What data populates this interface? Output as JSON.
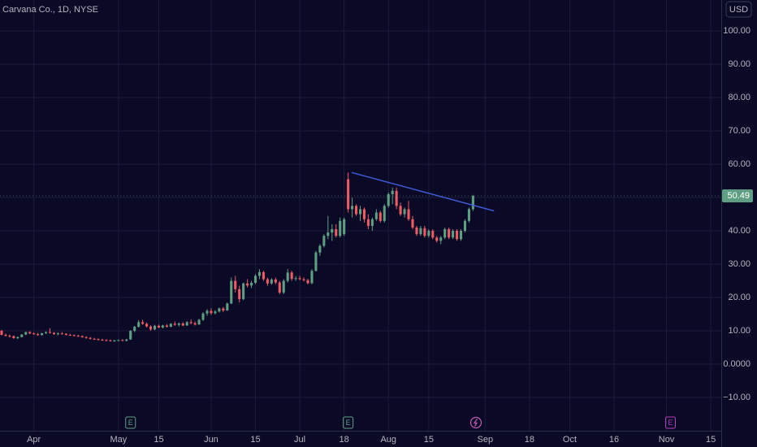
{
  "chart_data": {
    "type": "candlestick",
    "title": "Carvana Co., 1D, NYSE",
    "currency": "USD",
    "up_color": "#5e9f84",
    "down_color": "#f05a64",
    "grid": true,
    "ylim": [
      -20,
      109.3
    ],
    "xlim": [
      -0.4,
      178.6
    ],
    "yticks": [
      {
        "value": -10,
        "label": "−10.00"
      },
      {
        "value": 0,
        "label": "0.0000"
      },
      {
        "value": 10,
        "label": "10.00"
      },
      {
        "value": 20,
        "label": "20.00"
      },
      {
        "value": 30,
        "label": "30.00"
      },
      {
        "value": 40,
        "label": "40.00"
      },
      {
        "value": 50,
        "label": "50.00"
      },
      {
        "value": 60,
        "label": "60.00"
      },
      {
        "value": 70,
        "label": "70.00"
      },
      {
        "value": 80,
        "label": "80.00"
      },
      {
        "value": 90,
        "label": "90.00"
      },
      {
        "value": 100,
        "label": "100.00"
      }
    ],
    "xticks": [
      {
        "value": 8,
        "label": "Apr"
      },
      {
        "value": 29,
        "label": "May"
      },
      {
        "value": 39,
        "label": "15"
      },
      {
        "value": 52,
        "label": "Jun"
      },
      {
        "value": 63,
        "label": "15"
      },
      {
        "value": 74,
        "label": "Jul"
      },
      {
        "value": 85,
        "label": "18"
      },
      {
        "value": 96,
        "label": "Aug"
      },
      {
        "value": 106,
        "label": "15"
      },
      {
        "value": 120,
        "label": "Sep"
      },
      {
        "value": 131,
        "label": "18"
      },
      {
        "value": 141,
        "label": "Oct"
      },
      {
        "value": 152,
        "label": "16"
      },
      {
        "value": 165,
        "label": "Nov"
      },
      {
        "value": 176,
        "label": "15"
      }
    ],
    "last_price": 50.49,
    "last_price_color": "#5e9f84",
    "trendline": {
      "x": [
        86.9,
        122.2
      ],
      "y": [
        57.5,
        46.0
      ],
      "color": "#3f5ad8"
    },
    "events": [
      {
        "x": 32,
        "label": "E",
        "color": "#5e9f84"
      },
      {
        "x": 86,
        "label": "E",
        "color": "#5e9f84"
      },
      {
        "x": 166,
        "label": "E",
        "color": "#b43fbd"
      }
    ],
    "ohlc": [
      [
        10,
        10.3,
        8.6,
        8.8
      ],
      [
        8.8,
        9.2,
        8.3,
        8.5
      ],
      [
        8.5,
        8.9,
        8.0,
        8.4
      ],
      [
        8.4,
        8.6,
        7.6,
        7.8
      ],
      [
        7.8,
        8.3,
        7.5,
        8.1
      ],
      [
        8.1,
        9.0,
        8.0,
        8.9
      ],
      [
        8.9,
        9.8,
        8.7,
        9.6
      ],
      [
        9.6,
        9.9,
        9.0,
        9.2
      ],
      [
        9.2,
        9.5,
        8.8,
        9.0
      ],
      [
        9.0,
        9.4,
        8.5,
        8.7
      ],
      [
        8.7,
        9.4,
        8.6,
        9.3
      ],
      [
        9.3,
        9.8,
        9.0,
        9.6
      ],
      [
        9.6,
        10.8,
        9.2,
        9.4
      ],
      [
        9.4,
        9.6,
        8.8,
        9.0
      ],
      [
        9.0,
        9.5,
        8.7,
        9.2
      ],
      [
        9.2,
        9.6,
        8.9,
        9.1
      ],
      [
        9.1,
        9.3,
        8.6,
        8.8
      ],
      [
        8.8,
        9.1,
        8.5,
        8.7
      ],
      [
        8.7,
        8.9,
        8.3,
        8.5
      ],
      [
        8.5,
        8.8,
        8.2,
        8.4
      ],
      [
        8.4,
        8.6,
        7.9,
        8.1
      ],
      [
        8.1,
        8.4,
        7.6,
        7.9
      ],
      [
        7.9,
        8.1,
        7.4,
        7.6
      ],
      [
        7.6,
        7.9,
        7.3,
        7.5
      ],
      [
        7.5,
        7.7,
        7.1,
        7.3
      ],
      [
        7.3,
        7.6,
        7.0,
        7.2
      ],
      [
        7.2,
        7.5,
        6.9,
        7.1
      ],
      [
        7.1,
        7.4,
        6.8,
        7.0
      ],
      [
        7.0,
        7.3,
        6.7,
        7.1
      ],
      [
        7.1,
        7.4,
        6.9,
        7.2
      ],
      [
        7.2,
        7.5,
        6.9,
        7.0
      ],
      [
        7.0,
        7.6,
        6.8,
        7.4
      ],
      [
        7.4,
        10.2,
        7.3,
        10.0
      ],
      [
        10.0,
        11.5,
        9.6,
        11.2
      ],
      [
        11.2,
        13.2,
        11.0,
        12.6
      ],
      [
        12.6,
        13.3,
        11.8,
        12.1
      ],
      [
        12.1,
        12.5,
        11.0,
        11.3
      ],
      [
        11.3,
        11.6,
        10.0,
        10.4
      ],
      [
        10.4,
        11.8,
        10.2,
        11.5
      ],
      [
        11.5,
        11.9,
        10.8,
        11.0
      ],
      [
        11.0,
        11.8,
        10.7,
        11.6
      ],
      [
        11.6,
        12.0,
        11.0,
        11.2
      ],
      [
        11.2,
        12.3,
        11.1,
        12.1
      ],
      [
        12.1,
        12.8,
        11.5,
        11.8
      ],
      [
        11.8,
        12.5,
        11.3,
        12.2
      ],
      [
        12.2,
        12.6,
        11.4,
        11.6
      ],
      [
        11.6,
        12.9,
        11.5,
        12.6
      ],
      [
        12.6,
        13.4,
        12.0,
        12.3
      ],
      [
        12.3,
        12.8,
        11.6,
        11.9
      ],
      [
        11.9,
        13.6,
        11.8,
        13.3
      ],
      [
        13.3,
        15.6,
        13.0,
        15.2
      ],
      [
        15.2,
        16.5,
        14.5,
        16.0
      ],
      [
        16.0,
        16.8,
        14.8,
        15.3
      ],
      [
        15.3,
        16.2,
        14.9,
        15.8
      ],
      [
        15.8,
        17.0,
        15.5,
        16.7
      ],
      [
        16.7,
        17.2,
        15.6,
        16.1
      ],
      [
        16.1,
        18.5,
        16.0,
        18.2
      ],
      [
        18.2,
        26.0,
        18.0,
        25.0
      ],
      [
        25.0,
        26.5,
        21.5,
        22.5
      ],
      [
        22.5,
        23.5,
        18.5,
        19.5
      ],
      [
        19.5,
        24.5,
        19.2,
        24.2
      ],
      [
        24.2,
        25.5,
        23.0,
        23.6
      ],
      [
        23.6,
        25.0,
        22.8,
        24.4
      ],
      [
        24.4,
        27.0,
        24.0,
        26.5
      ],
      [
        26.5,
        28.5,
        25.5,
        27.6
      ],
      [
        27.6,
        28.0,
        25.0,
        25.5
      ],
      [
        25.5,
        26.0,
        23.5,
        24.2
      ],
      [
        24.2,
        25.8,
        23.8,
        25.4
      ],
      [
        25.4,
        26.0,
        24.0,
        24.5
      ],
      [
        24.5,
        25.0,
        21.0,
        21.5
      ],
      [
        21.5,
        25.5,
        21.0,
        25.0
      ],
      [
        25.0,
        28.5,
        24.5,
        27.5
      ],
      [
        27.5,
        28.0,
        25.0,
        25.6
      ],
      [
        25.6,
        26.4,
        25.0,
        25.8
      ],
      [
        25.8,
        26.5,
        25.2,
        25.5
      ],
      [
        25.5,
        26.0,
        24.8,
        25.2
      ],
      [
        25.2,
        25.6,
        24.0,
        24.3
      ],
      [
        24.3,
        28.5,
        24.0,
        28.0
      ],
      [
        28.0,
        34.0,
        27.8,
        33.5
      ],
      [
        33.5,
        36.0,
        32.5,
        35.5
      ],
      [
        35.5,
        39.0,
        35.0,
        38.5
      ],
      [
        38.5,
        44.5,
        37.5,
        39.5
      ],
      [
        39.5,
        42.0,
        37.0,
        40.5
      ],
      [
        40.5,
        42.0,
        38.0,
        38.5
      ],
      [
        38.5,
        44.0,
        38.0,
        43.0
      ],
      [
        39.0,
        44.0,
        38.5,
        43.5
      ],
      [
        55.5,
        57.5,
        45.5,
        46.5
      ],
      [
        46.5,
        50.0,
        44.0,
        47.5
      ],
      [
        47.5,
        48.0,
        44.5,
        45.0
      ],
      [
        45.0,
        47.5,
        43.0,
        46.5
      ],
      [
        46.5,
        47.0,
        42.5,
        43.5
      ],
      [
        43.5,
        45.0,
        40.5,
        41.5
      ],
      [
        41.5,
        44.0,
        40.0,
        43.5
      ],
      [
        43.5,
        46.5,
        43.0,
        45.5
      ],
      [
        45.5,
        46.0,
        42.5,
        43.0
      ],
      [
        43.0,
        48.0,
        42.5,
        47.5
      ],
      [
        47.5,
        51.5,
        47.0,
        51.0
      ],
      [
        51.0,
        53.0,
        48.0,
        52.0
      ],
      [
        52.0,
        53.0,
        46.5,
        47.5
      ],
      [
        47.5,
        48.5,
        44.5,
        45.0
      ],
      [
        45.0,
        47.0,
        44.0,
        46.5
      ],
      [
        46.5,
        49.0,
        43.0,
        43.5
      ],
      [
        43.5,
        44.5,
        40.5,
        41.0
      ],
      [
        41.0,
        41.5,
        38.5,
        39.0
      ],
      [
        39.0,
        41.5,
        38.5,
        40.8
      ],
      [
        40.8,
        41.5,
        38.0,
        38.5
      ],
      [
        38.5,
        40.5,
        38.0,
        40.0
      ],
      [
        40.0,
        40.5,
        37.5,
        38.0
      ],
      [
        38.0,
        38.5,
        36.5,
        37.0
      ],
      [
        37.0,
        38.5,
        36.0,
        38.0
      ],
      [
        38.0,
        41.0,
        37.5,
        40.5
      ],
      [
        40.5,
        41.0,
        37.5,
        38.0
      ],
      [
        38.0,
        40.5,
        37.5,
        40.0
      ],
      [
        40.0,
        40.5,
        37.0,
        37.5
      ],
      [
        37.5,
        40.5,
        37.0,
        40.0
      ],
      [
        40.0,
        43.5,
        39.5,
        43.0
      ],
      [
        43.0,
        47.0,
        42.5,
        46.5
      ],
      [
        46.5,
        50.8,
        46.0,
        50.49
      ]
    ]
  }
}
